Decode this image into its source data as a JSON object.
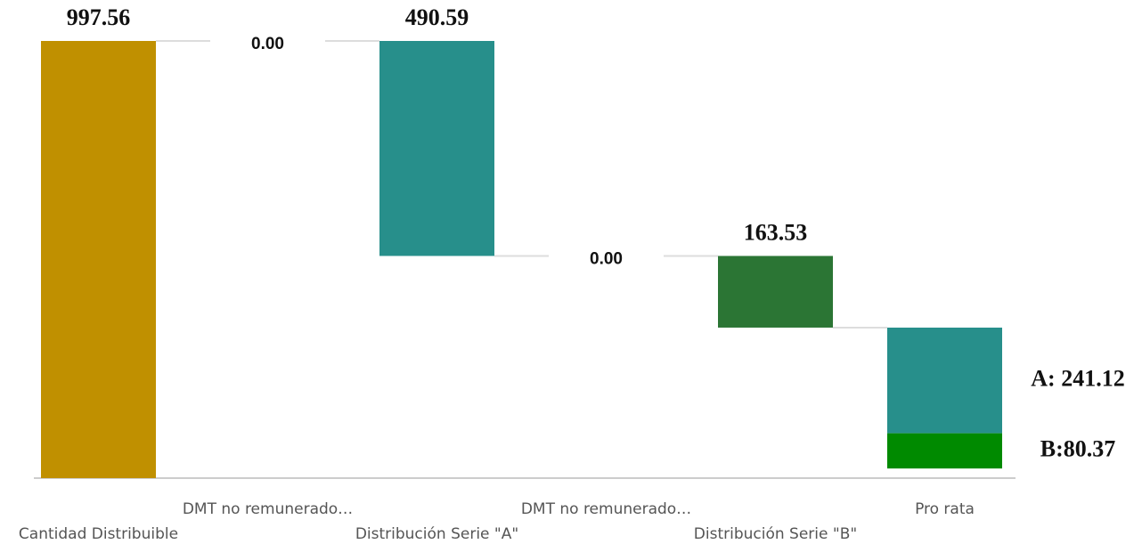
{
  "chart_data": {
    "type": "waterfall",
    "categories": [
      "Cantidad Distribuible",
      "DMT no remunerado…",
      "Distribución Serie \"A\"",
      "DMT no remunerado…",
      "Distribución Serie \"B\"",
      "Pro rata"
    ],
    "values": [
      997.56,
      0,
      490.59,
      0,
      163.53,
      null
    ],
    "value_labels": [
      null,
      "0.00",
      null,
      "0.00",
      null,
      null
    ],
    "colors": [
      "#c09000",
      "#278f8b",
      "#278f8b",
      "#278f8b",
      "#2b7534",
      null
    ],
    "stack": [
      {
        "value": 241.12,
        "value_label": "A: 241.12",
        "color": "#278f8b"
      },
      {
        "value": 80.37,
        "value_label": "B:80.37",
        "color": "#008a00"
      }
    ]
  }
}
